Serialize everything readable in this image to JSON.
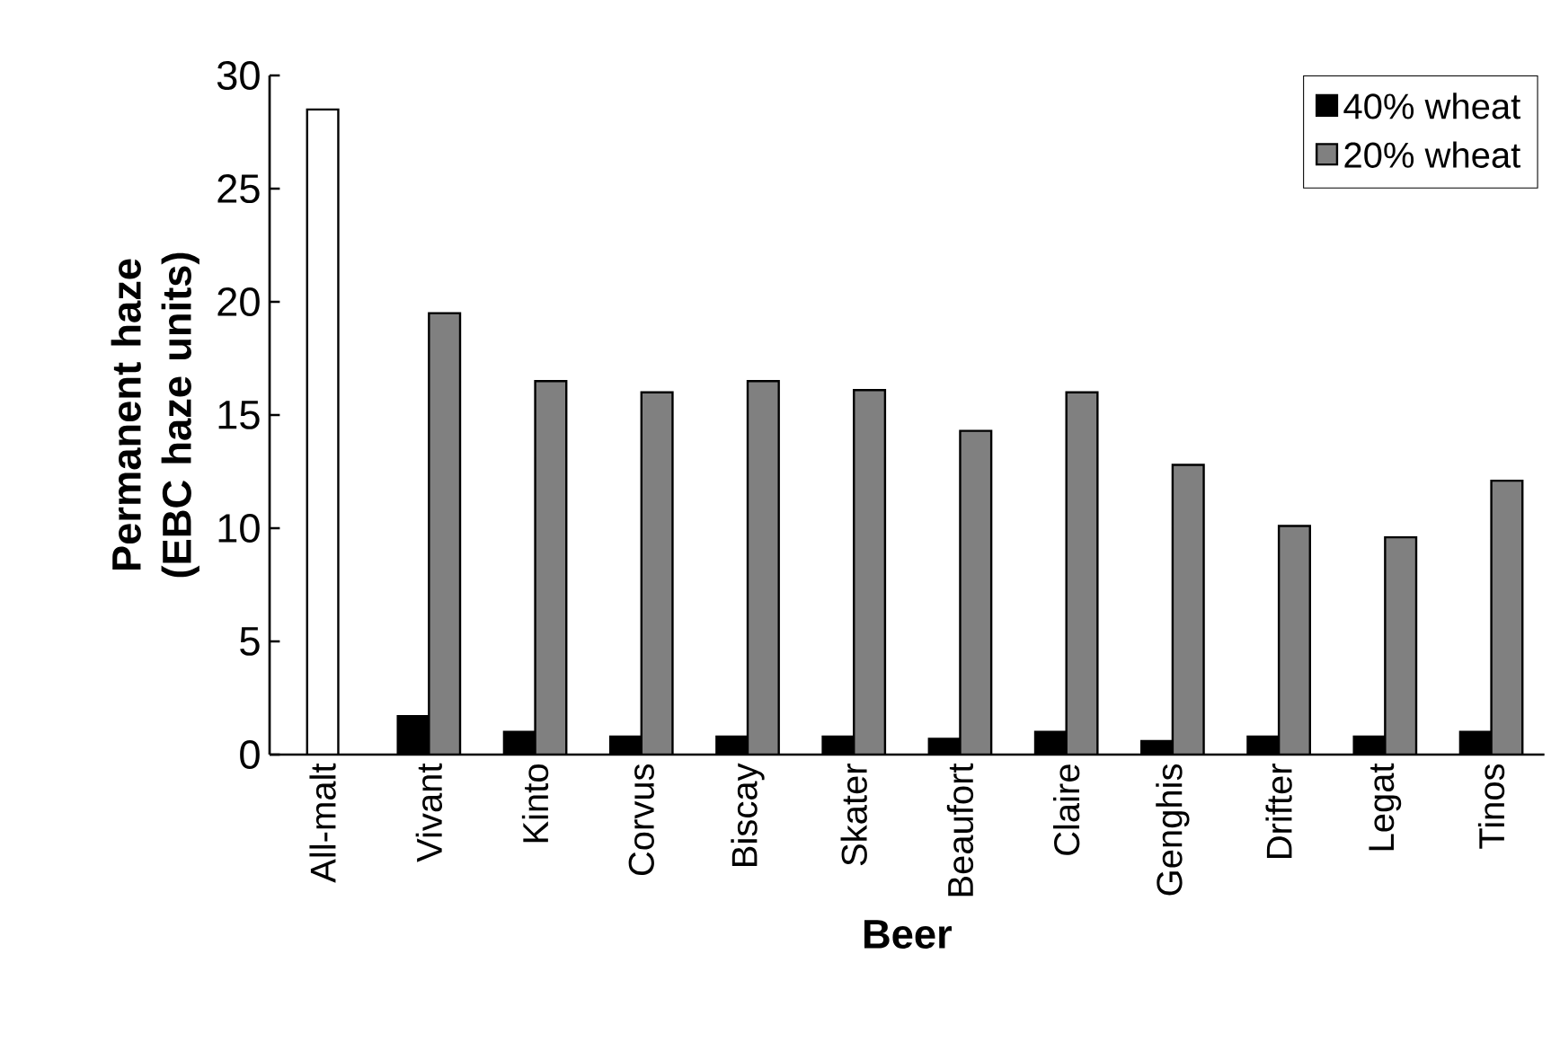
{
  "chart_data": {
    "type": "bar",
    "xlabel": "Beer",
    "ylabel": "Permanent haze (EBC haze units)",
    "categories": [
      "All-malt",
      "Vivant",
      "Kinto",
      "Corvus",
      "Biscay",
      "Skater",
      "Beaufort",
      "Claire",
      "Genghis",
      "Drifter",
      "Legat",
      "Tinos"
    ],
    "series": [
      {
        "color": "#ffffff",
        "values": [
          28.5,
          null,
          null,
          null,
          null,
          null,
          null,
          null,
          null,
          null,
          null,
          null
        ]
      },
      {
        "name": "40% wheat",
        "color": "#000000",
        "values": [
          null,
          1.7,
          1.0,
          0.8,
          0.8,
          0.8,
          0.7,
          1.0,
          0.6,
          0.8,
          0.8,
          1.0
        ]
      },
      {
        "name": "20% wheat",
        "color": "#808080",
        "values": [
          null,
          19.5,
          16.5,
          16.0,
          16.5,
          16.1,
          14.3,
          16.0,
          12.8,
          10.1,
          9.6,
          12.1
        ]
      }
    ],
    "ylim": [
      0,
      30
    ],
    "yticks": [
      0,
      5,
      10,
      15,
      20,
      25,
      30
    ],
    "legend": "top right",
    "grid": false
  }
}
